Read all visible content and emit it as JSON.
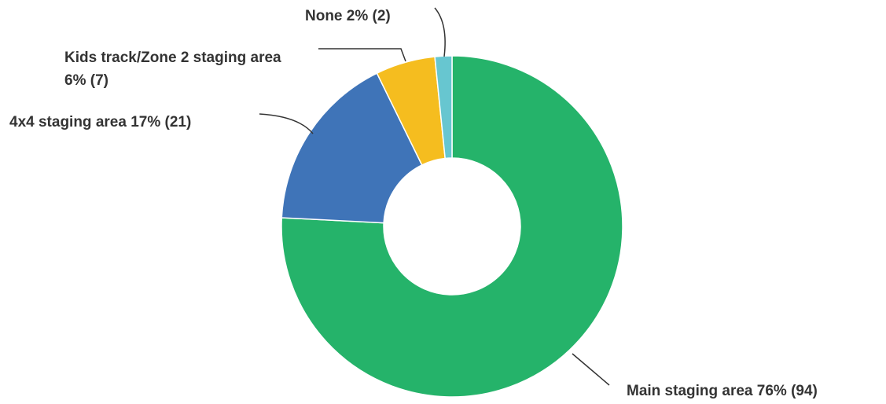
{
  "chart_data": {
    "type": "donut",
    "categories": [
      "Main staging area",
      "4x4 staging area",
      "Kids track/Zone 2 staging area",
      "None"
    ],
    "values": [
      94,
      21,
      7,
      2
    ],
    "value_labels": [
      "76% (94)",
      "17% (21)",
      "6% (7)",
      "2% (2)"
    ],
    "colors": [
      "#25b36a",
      "#3f74b8",
      "#f5bd1f",
      "#67c6d0"
    ]
  }
}
